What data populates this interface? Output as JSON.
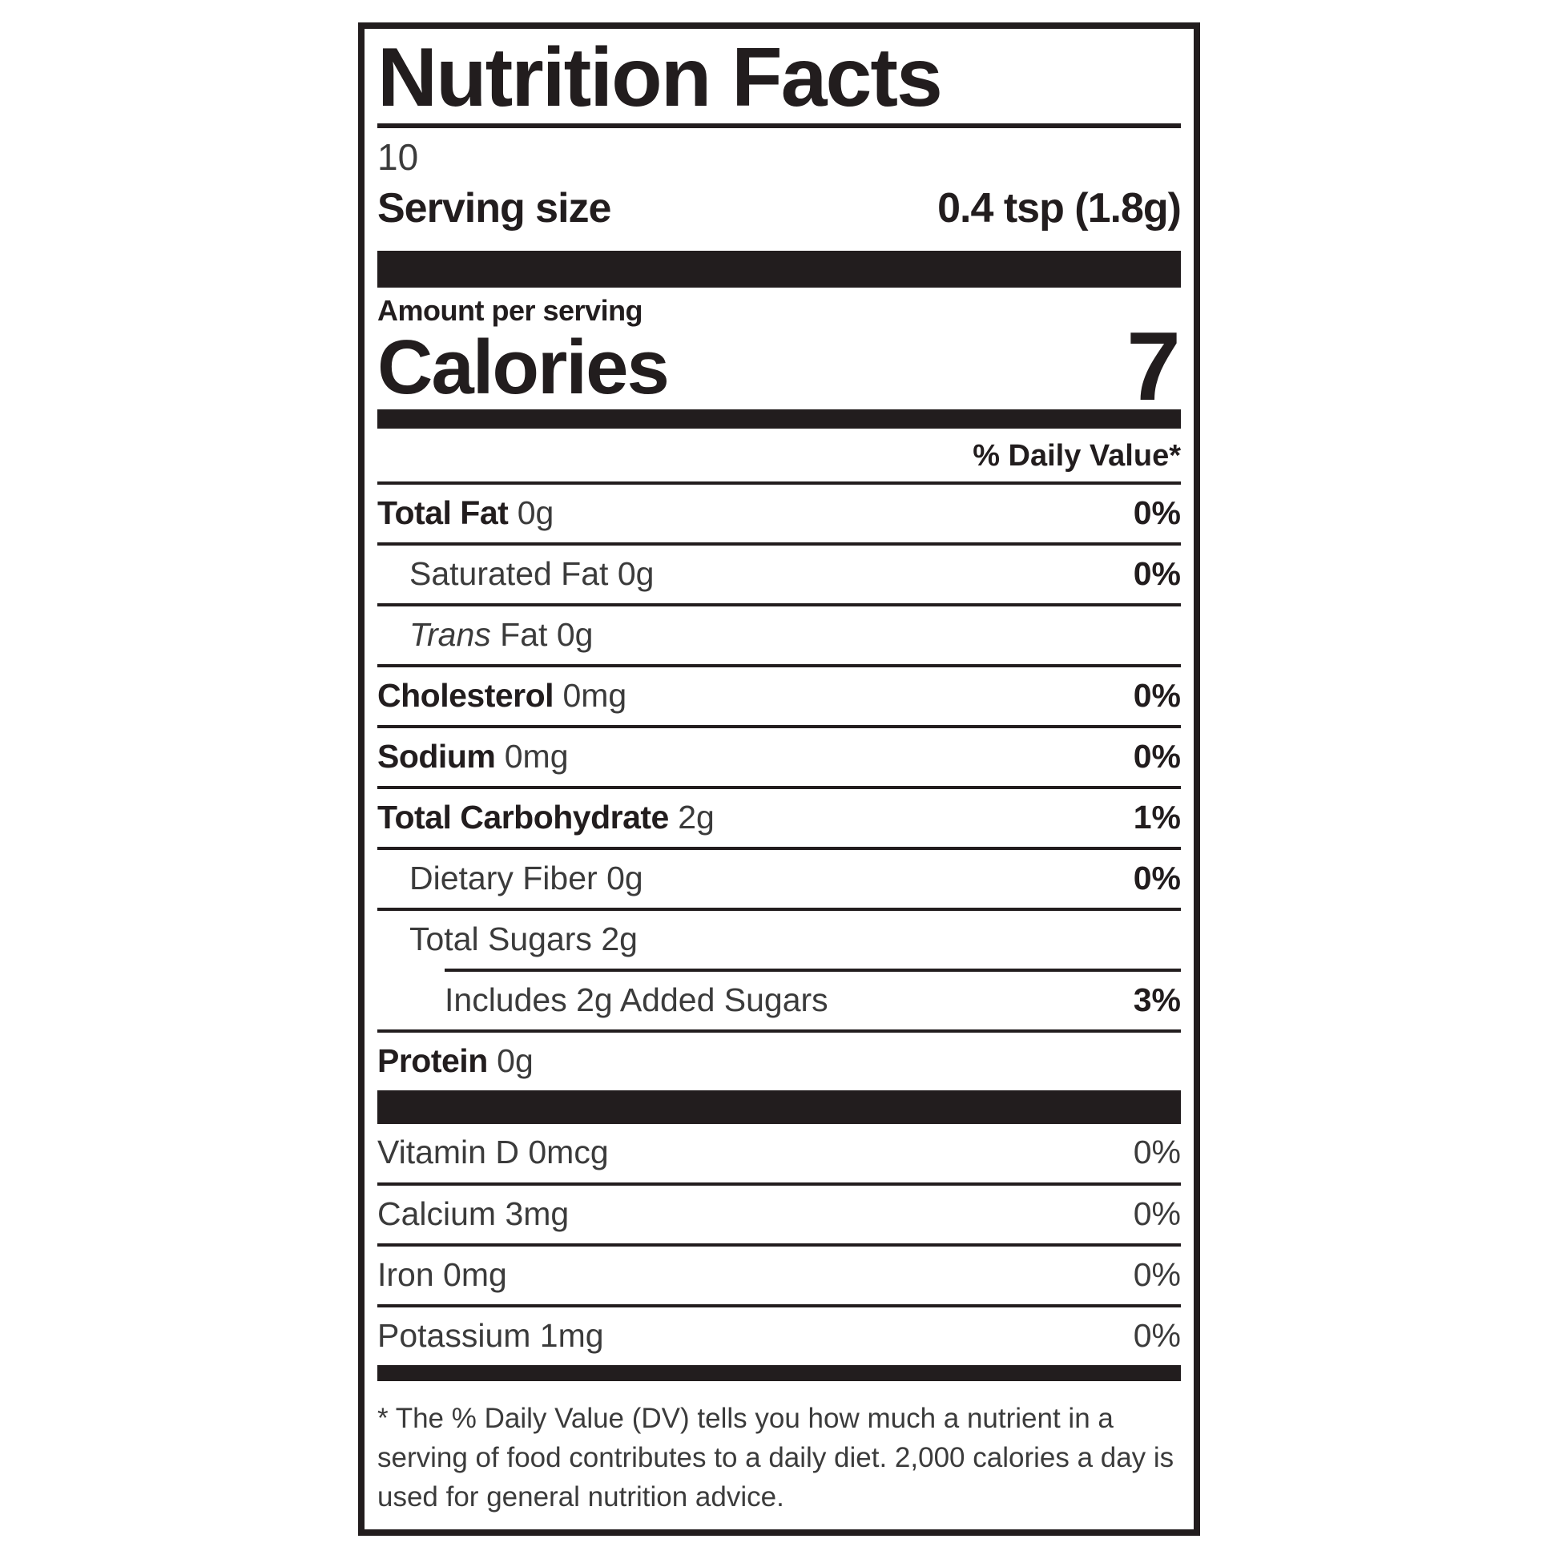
{
  "colors": {
    "ink": "#221d1e",
    "text": "#3b3b3b",
    "background": "#ffffff"
  },
  "label": {
    "title": "Nutrition Facts",
    "servings_per_container": "10",
    "serving_size": {
      "label": "Serving size",
      "value": "0.4 tsp (1.8g)"
    },
    "calories": {
      "eyebrow": "Amount per serving",
      "label": "Calories",
      "value": "7"
    },
    "daily_value_header": "% Daily Value*",
    "nutrients": [
      {
        "name": "Total Fat",
        "amount": "0g",
        "dv": "0%"
      },
      {
        "name": "Saturated Fat",
        "amount": "0g",
        "dv": "0%"
      },
      {
        "name_italic": "Trans",
        "name": "Fat",
        "amount": "0g",
        "dv": ""
      },
      {
        "name": "Cholesterol",
        "amount": "0mg",
        "dv": "0%"
      },
      {
        "name": "Sodium",
        "amount": "0mg",
        "dv": "0%"
      },
      {
        "name": "Total Carbohydrate",
        "amount": "2g",
        "dv": "1%"
      },
      {
        "name": "Dietary Fiber",
        "amount": "0g",
        "dv": "0%"
      },
      {
        "name": "Total Sugars",
        "amount": "2g",
        "dv": ""
      },
      {
        "name": "Includes 2g Added Sugars",
        "amount": "",
        "dv": "3%"
      },
      {
        "name": "Protein",
        "amount": "0g",
        "dv": ""
      }
    ],
    "micronutrients": [
      {
        "name": "Vitamin D 0mcg",
        "dv": "0%"
      },
      {
        "name": "Calcium 3mg",
        "dv": "0%"
      },
      {
        "name": "Iron 0mg",
        "dv": "0%"
      },
      {
        "name": "Potassium 1mg",
        "dv": "0%"
      }
    ],
    "footnote": "* The % Daily Value (DV) tells you how much a nutrient in a serving of food contributes to a daily diet. 2,000 calories a day is used for general nutrition advice."
  }
}
